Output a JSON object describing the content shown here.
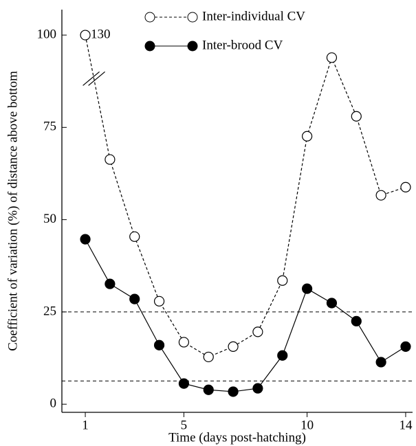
{
  "chart_data": {
    "type": "line",
    "x_label": "Time (days post-hatching)",
    "y_label": "Coefficient of variation (%) of distance above bottom",
    "x": [
      1,
      2,
      3,
      4,
      5,
      6,
      7,
      8,
      9,
      10,
      11,
      12,
      13,
      14
    ],
    "series": [
      {
        "name": "Inter-individual CV",
        "color": "#000000",
        "marker": "open",
        "dashed": true,
        "values": [
          130,
          66.3,
          45.4,
          27.9,
          16.8,
          12.8,
          15.6,
          19.6,
          33.5,
          72.6,
          93.9,
          78.0,
          56.6,
          58.8
        ],
        "value_labels": [
          "130",
          null,
          null,
          null,
          null,
          null,
          null,
          null,
          null,
          null,
          null,
          null,
          null,
          null
        ]
      },
      {
        "name": "Inter-brood CV",
        "color": "#000000",
        "marker": "filled",
        "dashed": false,
        "values": [
          44.7,
          32.6,
          28.5,
          16.0,
          5.6,
          3.9,
          3.4,
          4.3,
          13.2,
          31.3,
          27.4,
          22.5,
          11.4,
          15.6
        ]
      }
    ],
    "reference_lines": [
      25,
      6.3
    ],
    "xlim": [
      0.05,
      14.28
    ],
    "ylim": [
      -2.2,
      106.9
    ],
    "xticks": [
      1,
      5,
      10,
      14
    ],
    "yticks": [
      0,
      25,
      50,
      75,
      100
    ],
    "legend": "top"
  }
}
